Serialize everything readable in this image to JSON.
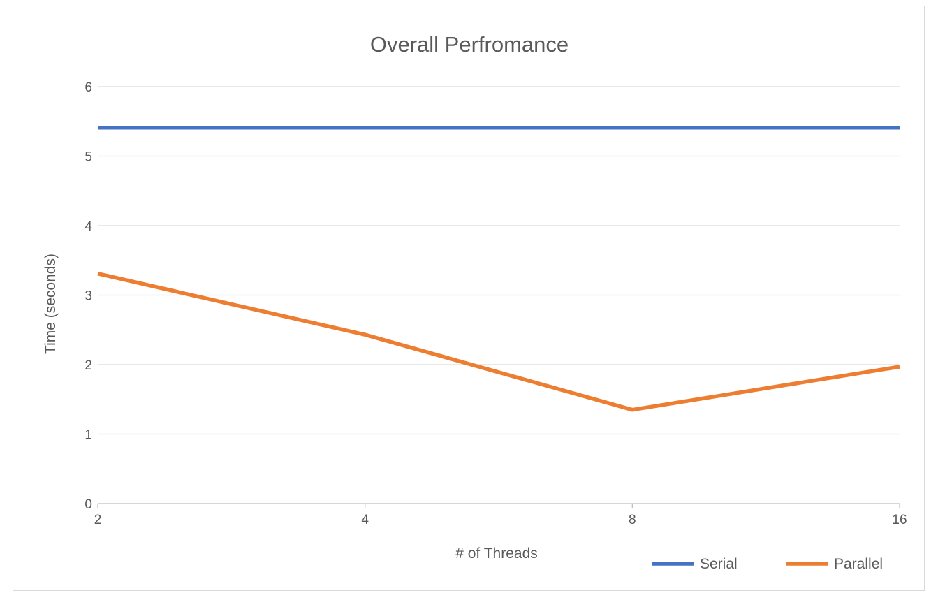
{
  "chart_data": {
    "type": "line",
    "title": "Overall Perfromance",
    "xlabel": "# of Threads",
    "ylabel": "Time (seconds)",
    "x": [
      "2",
      "4",
      "8",
      "16"
    ],
    "ylim": [
      0,
      6
    ],
    "yticks": [
      "0",
      "1",
      "2",
      "3",
      "4",
      "5",
      "6"
    ],
    "grid": true,
    "legend_position": "bottom-right",
    "series": [
      {
        "name": "Serial",
        "values": [
          5.41,
          5.41,
          5.41,
          5.41
        ],
        "color": "#4472c4"
      },
      {
        "name": "Parallel",
        "values": [
          3.31,
          2.43,
          1.35,
          1.97
        ],
        "color": "#ed7d31"
      }
    ]
  }
}
